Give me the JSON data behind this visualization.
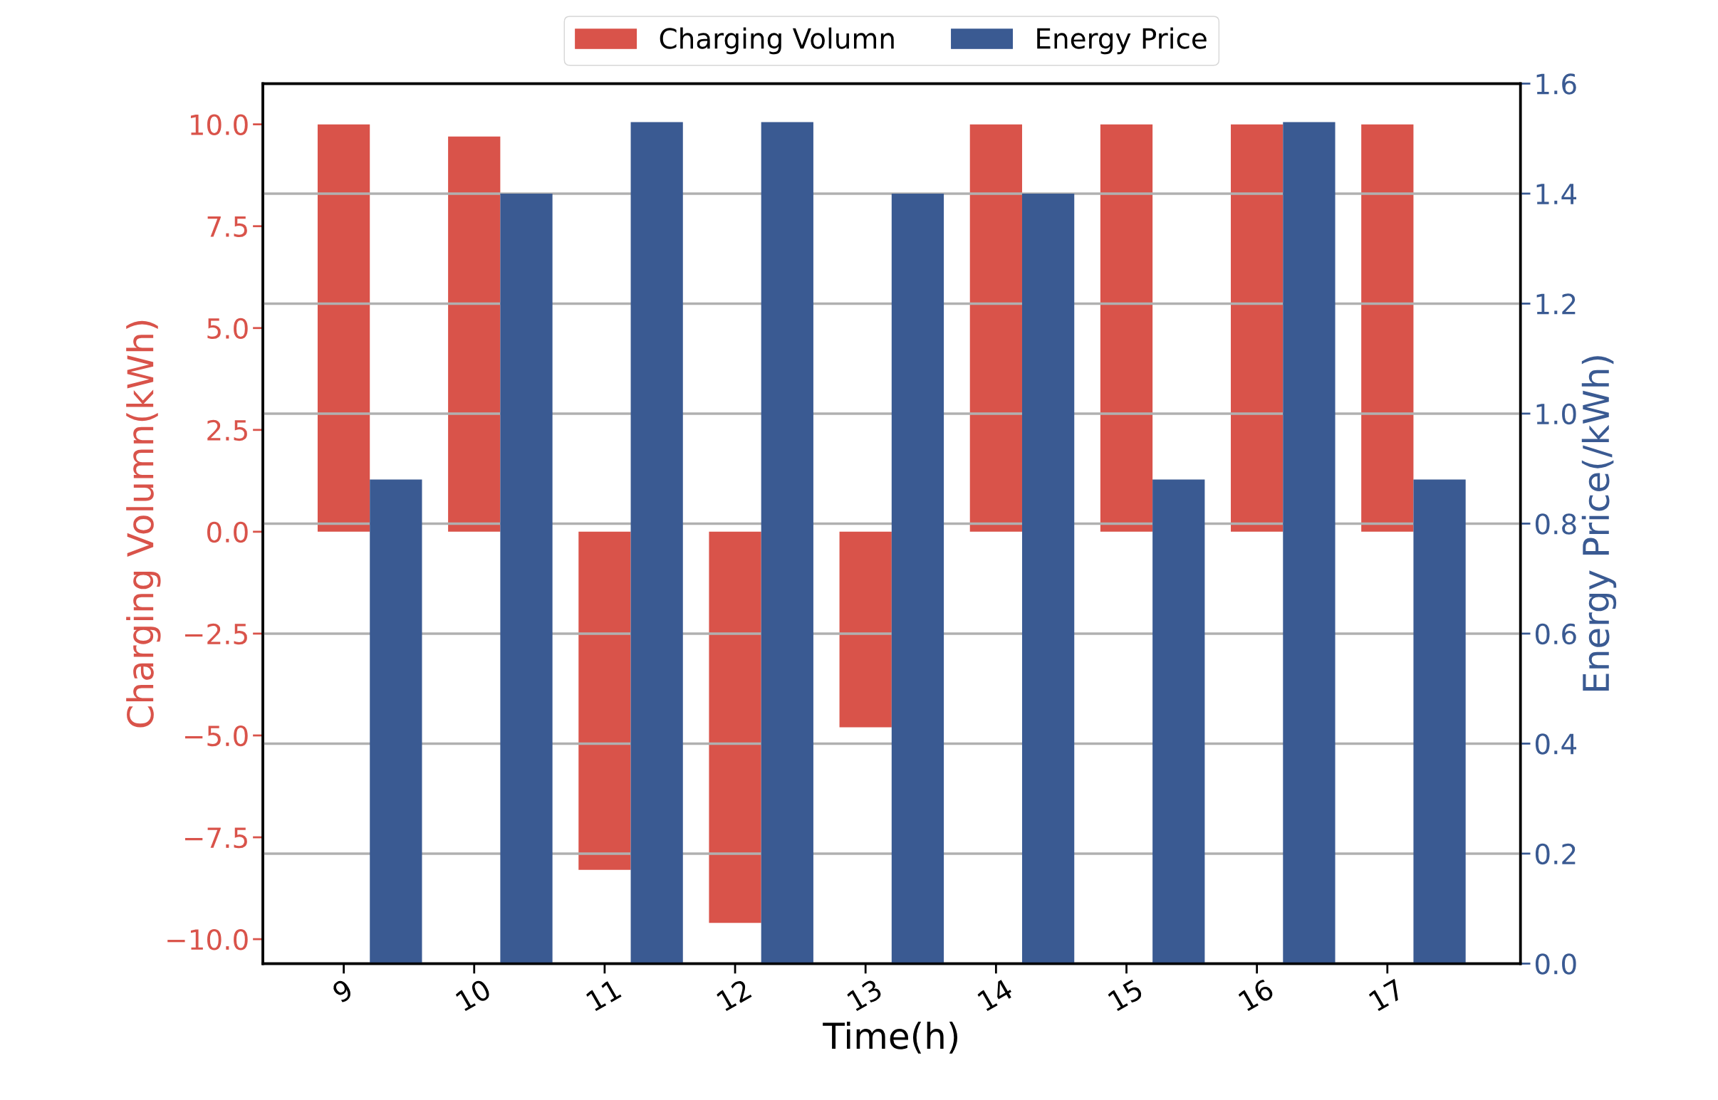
{
  "chart_data": {
    "type": "bar",
    "xlabel": "Time(h)",
    "ylabel": "Charging Volumn(kWh)",
    "y2label": "Energy Price(/kWh)",
    "categories": [
      "9",
      "10",
      "11",
      "12",
      "13",
      "14",
      "15",
      "16",
      "17"
    ],
    "series": [
      {
        "name": "Charging Volumn",
        "color": "#d9534a",
        "values": [
          10.0,
          9.7,
          -8.3,
          -9.6,
          -4.8,
          10.0,
          10.0,
          10.0,
          10.0
        ]
      },
      {
        "name": "Energy Price",
        "color": "#3a5a92",
        "axis": "y2",
        "values": [
          0.88,
          1.4,
          1.53,
          1.53,
          1.4,
          1.4,
          0.88,
          1.53,
          0.88
        ]
      }
    ],
    "ylim": [
      -10.6,
      11.0
    ],
    "yticks": [
      {
        "value": -10,
        "label": "−10.0"
      },
      {
        "value": -7.5,
        "label": "−7.5"
      },
      {
        "value": -5,
        "label": "−5.0"
      },
      {
        "value": -2.5,
        "label": "−2.5"
      },
      {
        "value": 0,
        "label": "0.0"
      },
      {
        "value": 2.5,
        "label": "2.5"
      },
      {
        "value": 5,
        "label": "5.0"
      },
      {
        "value": 7.5,
        "label": "7.5"
      },
      {
        "value": 10,
        "label": "10.0"
      }
    ],
    "y2lim": [
      0,
      1.6
    ],
    "y2ticks": [
      {
        "value": 0,
        "label": "0.0"
      },
      {
        "value": 0.2,
        "label": "0.2"
      },
      {
        "value": 0.4,
        "label": "0.4"
      },
      {
        "value": 0.6,
        "label": "0.6"
      },
      {
        "value": 0.8,
        "label": "0.8"
      },
      {
        "value": 1.0,
        "label": "1.0"
      },
      {
        "value": 1.2,
        "label": "1.2"
      },
      {
        "value": 1.4,
        "label": "1.4"
      },
      {
        "value": 1.6,
        "label": "1.6"
      }
    ],
    "grid": "y",
    "legend": "top"
  }
}
